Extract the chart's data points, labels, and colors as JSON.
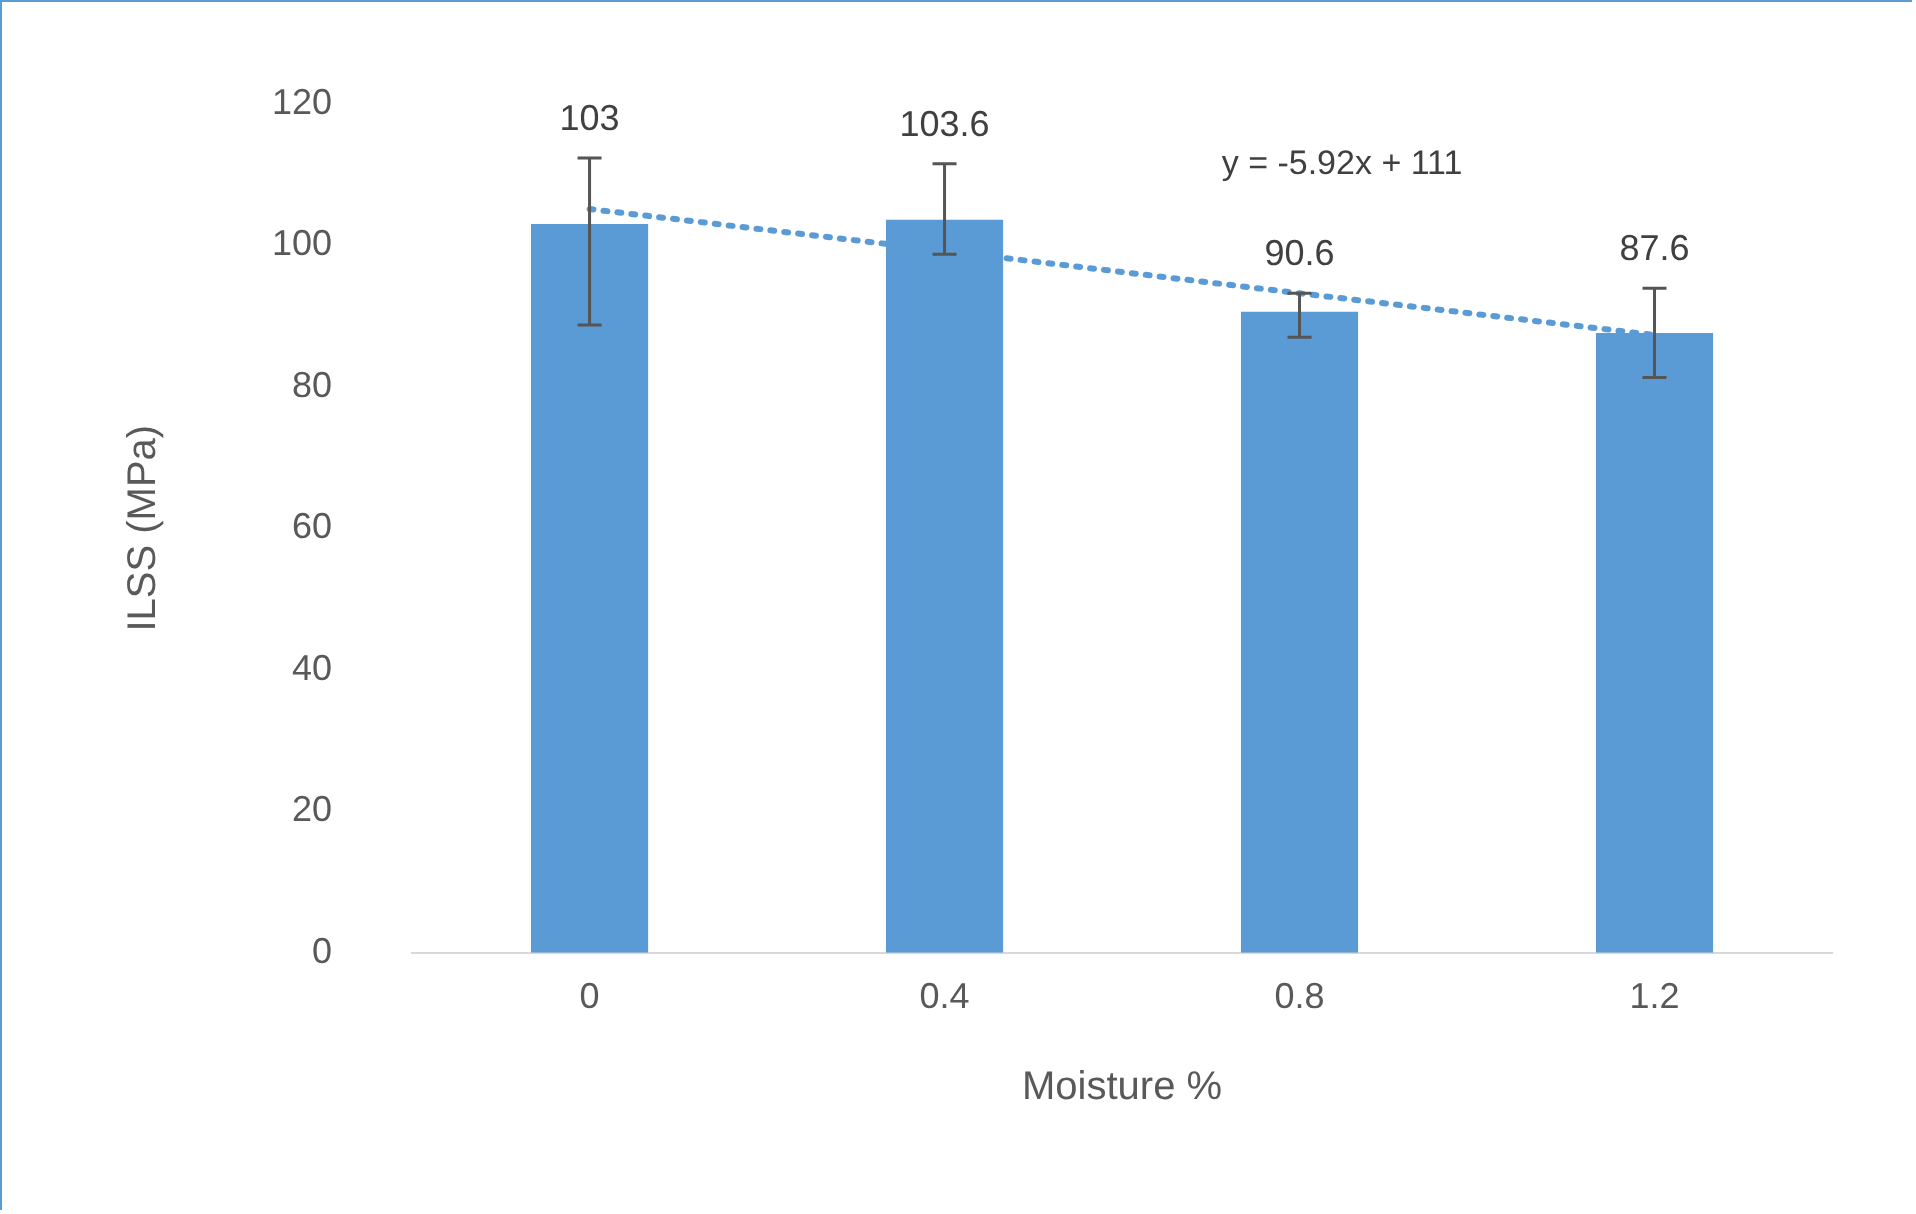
{
  "chart_data": {
    "type": "bar",
    "xlabel": "Moisture %",
    "ylabel": "ILSS (MPa)",
    "categories": [
      "0",
      "0.4",
      "0.8",
      "1.2"
    ],
    "series": [
      {
        "color": "#5b9bd5",
        "values": [
          103,
          103.6,
          90.6,
          87.6
        ],
        "errors": [
          [
            88.7,
            112.3
          ],
          [
            98.7,
            111.5
          ],
          [
            87.0,
            93.2
          ],
          [
            81.3,
            93.9
          ]
        ],
        "data_labels": true
      },
      {
        "type": "line",
        "color": "#5b9bd5",
        "values": [
          105.1,
          99.2,
          93.2,
          87.3
        ],
        "line_style": "dotted",
        "marker": "none"
      }
    ],
    "annotations": [
      "y = -5.92x + 111"
    ],
    "ylim": [
      0,
      120
    ],
    "yticks": [
      0,
      20,
      40,
      60,
      80,
      100,
      120
    ],
    "grid": false,
    "legend": false
  }
}
